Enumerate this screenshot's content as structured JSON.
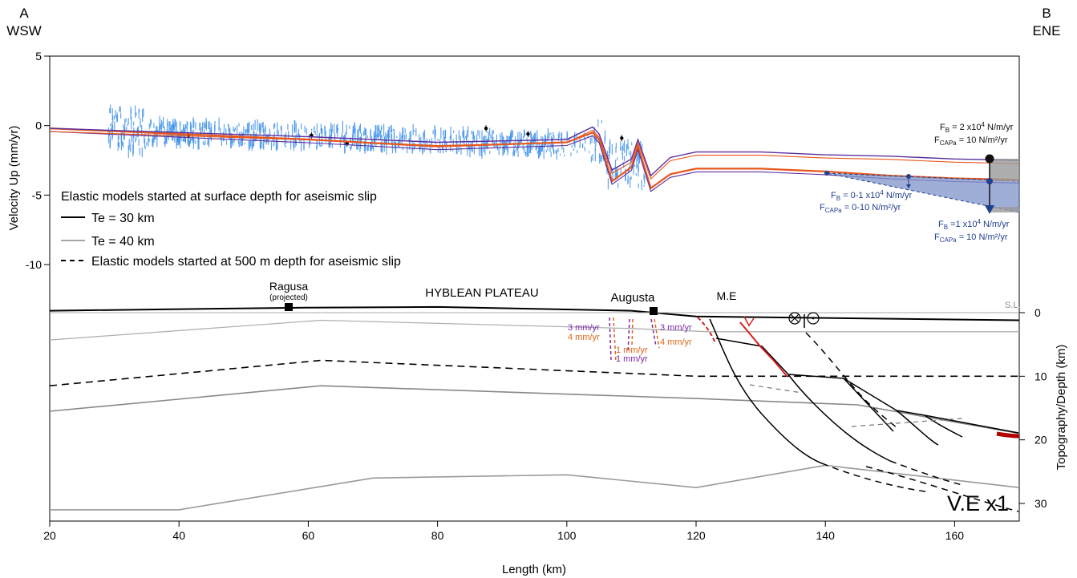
{
  "corners": {
    "left_letter": "A",
    "left_dir": "WSW",
    "right_letter": "B",
    "right_dir": "ENE"
  },
  "axes": {
    "xlabel": "Length (km)",
    "ylabel_top": "Velocity Up (mm/yr)",
    "ylabel_bottom": "Topography/Depth (km)",
    "x_ticks": [
      "20",
      "40",
      "60",
      "80",
      "100",
      "120",
      "140",
      "160"
    ],
    "vel_ticks": [
      "5",
      "0",
      "-5",
      "-10"
    ],
    "depth_ticks": [
      "0",
      "10",
      "20",
      "30"
    ]
  },
  "legend": {
    "title": "Elastic models started at surface depth for aseismic slip",
    "te30": "Te = 30 km",
    "te40": "Te = 40 km",
    "dashed": "Elastic models started at 500 m depth for aseismic slip"
  },
  "annotations": {
    "fb_top_1": "F",
    "fb_top_1b": "B",
    "fb_top_1c": " = 2 x10",
    "fb_top_1d": "4",
    "fb_top_1e": " N/m/yr",
    "fcapa_top": "F",
    "fcapa_top_b": "CAPa",
    "fcapa_top_c": " = 10 N/m²/yr",
    "fb_mid_a": "F",
    "fb_mid_b": "B",
    "fb_mid_c": " = 0-1 x10",
    "fb_mid_d": "4",
    "fb_mid_e": " N/m/yr",
    "fcapa_mid_a": "F",
    "fcapa_mid_b": "CAPa",
    "fcapa_mid_c": " = 0-10 N/m²/yr",
    "fb_bot_a": "F",
    "fb_bot_b": "B",
    "fb_bot_c": " =1 x10",
    "fb_bot_d": "4",
    "fb_bot_e": " N/m/yr",
    "fcapa_bot_a": "F",
    "fcapa_bot_b": "CAPa",
    "fcapa_bot_c": " = 10 N/m²/yr"
  },
  "section": {
    "ragusa": "Ragusa",
    "ragusa_note": "(projected)",
    "plateau": "HYBLEAN PLATEAU",
    "augusta": "Augusta",
    "me": "M.E",
    "sl": "S.L.",
    "ve": "V.E x1",
    "rates": {
      "r1": "3 mm/yr",
      "r2": "4 mm/yr",
      "r3": "1 mm/yr",
      "r4": "1 mm/yr",
      "r5": "3 mm/yr",
      "r6": "4 mm/yr"
    }
  },
  "colors": {
    "gnss": "#3c8ee8",
    "model_orange": "#e8561c",
    "model_purple": "#5a2fa0",
    "blue_fill": "#7f93c8",
    "grey_fill": "#9a9a9a",
    "fault_red": "#d81e1e"
  },
  "chart_data": [
    {
      "type": "line",
      "panel": "velocity",
      "xlabel": "Length (km)",
      "ylabel": "Velocity Up (mm/yr)",
      "xlim": [
        20,
        170
      ],
      "ylim": [
        -15,
        5
      ],
      "series": [
        {
          "name": "Te = 30 km",
          "x": [
            20,
            40,
            60,
            80,
            100,
            104,
            105,
            107,
            110,
            111,
            113,
            116,
            120,
            130,
            140,
            150,
            160,
            170
          ],
          "y": [
            -0.2,
            -0.6,
            -1.0,
            -1.5,
            -1.2,
            -0.5,
            -1.0,
            -4.0,
            -3.0,
            -1.5,
            -4.5,
            -3.5,
            -3.1,
            -3.1,
            -3.3,
            -3.6,
            -3.8,
            -3.9
          ]
        },
        {
          "name": "Te = 40 km",
          "x": [
            20,
            40,
            60,
            80,
            100,
            104,
            105,
            107,
            110,
            111,
            113,
            116,
            120,
            130,
            140,
            150,
            160,
            170
          ],
          "y": [
            -0.2,
            -0.5,
            -0.8,
            -1.2,
            -1.0,
            -0.1,
            -0.6,
            -3.2,
            -2.4,
            -1.0,
            -3.6,
            -2.3,
            -1.9,
            -1.9,
            -2.1,
            -2.2,
            -2.4,
            -2.5
          ]
        }
      ],
      "gnss_points": [
        {
          "x": 41.5,
          "y": -0.7
        },
        {
          "x": 60.5,
          "y": -0.7
        },
        {
          "x": 66,
          "y": -1.3
        },
        {
          "x": 87.5,
          "y": -0.2
        },
        {
          "x": 94,
          "y": -0.6
        },
        {
          "x": 108.5,
          "y": -0.9
        }
      ]
    },
    {
      "type": "line",
      "panel": "cross-section",
      "xlabel": "Length (km)",
      "ylabel": "Topography/Depth (km)",
      "xlim": [
        20,
        170
      ],
      "ylim": [
        35,
        -1
      ],
      "series": [
        {
          "x": [
            20,
            60,
            80,
            110,
            120,
            170
          ],
          "y": [
            -0.3,
            -0.8,
            -0.9,
            -0.3,
            0.6,
            1.2
          ]
        },
        {
          "x": [
            20,
            62,
            110,
            122,
            170
          ],
          "y": [
            4.3,
            1.2,
            2.5,
            3.0,
            3.0
          ]
        },
        {
          "x": [
            20,
            62,
            120,
            170
          ],
          "y": [
            11.5,
            7.5,
            10,
            10
          ]
        },
        {
          "x": [
            20,
            62,
            120,
            145,
            170
          ],
          "y": [
            15.5,
            11.5,
            13.5,
            14.5,
            19
          ]
        },
        {
          "x": [
            20,
            40,
            70,
            100,
            120,
            140,
            170
          ],
          "y": [
            31,
            31,
            26,
            25.5,
            27.5,
            24,
            27.5
          ]
        }
      ]
    }
  ]
}
